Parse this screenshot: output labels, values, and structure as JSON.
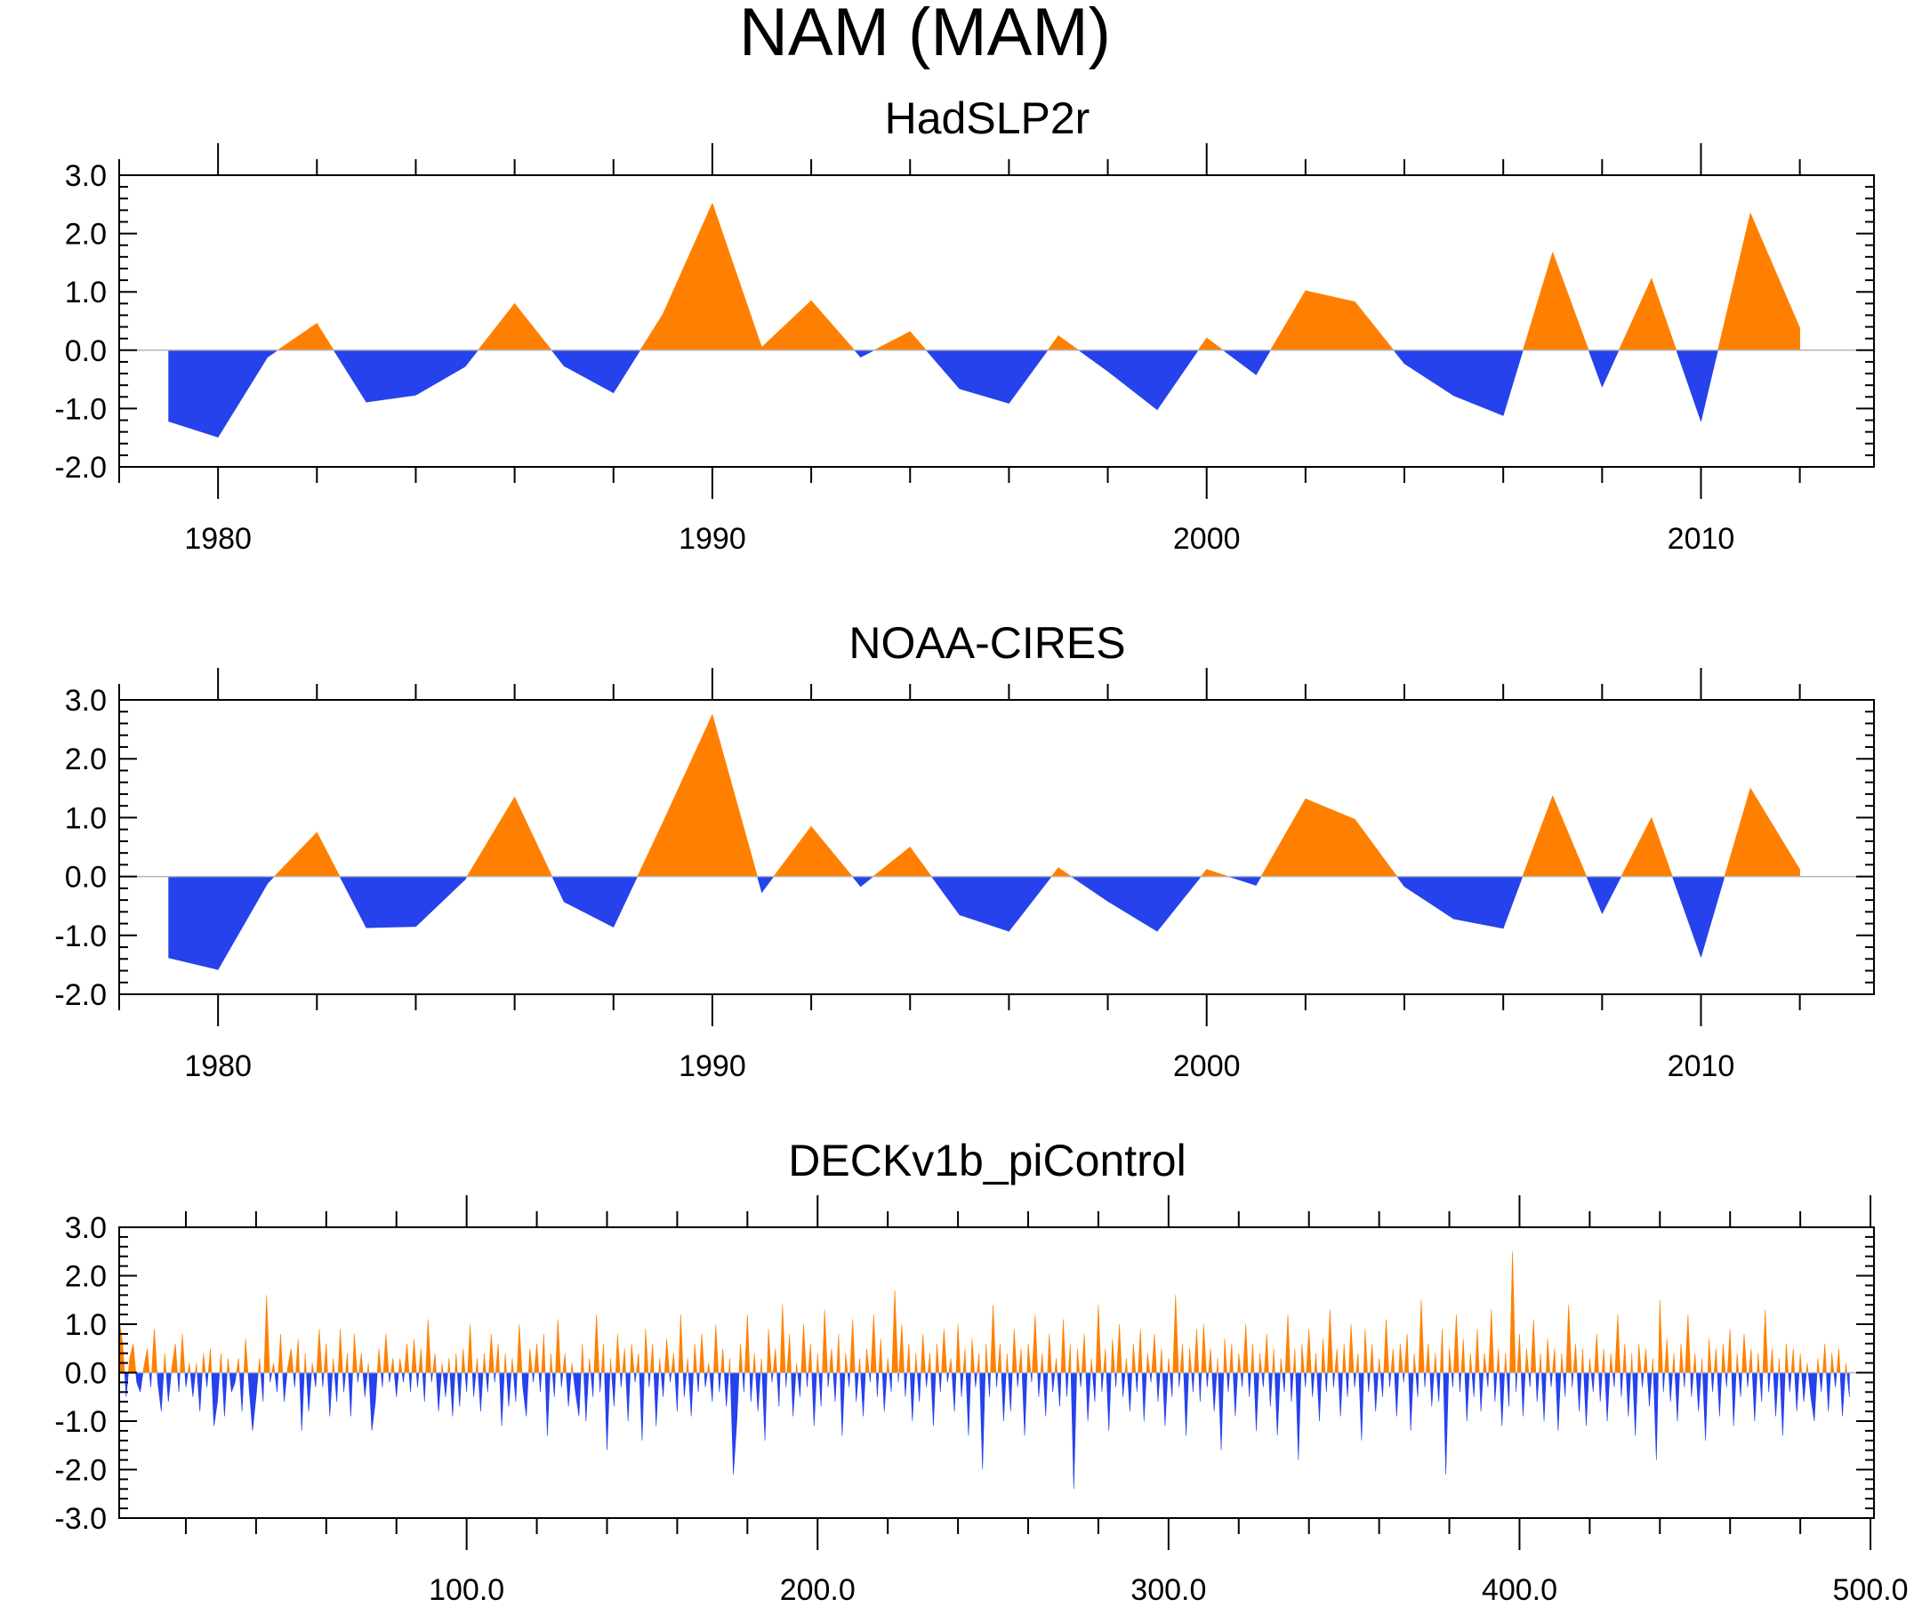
{
  "figure": {
    "title": "NAM (MAM)",
    "colors": {
      "positive": "#ff8000",
      "negative": "#2642ec",
      "zero_line": "#b4b4b4",
      "axis": "#000000"
    }
  },
  "chart_data": [
    {
      "type": "area",
      "title": "HadSLP2r",
      "xlabel": "",
      "ylabel": "",
      "xlim": [
        1978,
        2013.5
      ],
      "ylim": [
        -2.0,
        3.0
      ],
      "y_major_ticks": [
        -2.0,
        -1.0,
        0.0,
        1.0,
        2.0,
        3.0
      ],
      "y_tick_labels": [
        "-2.0",
        "-1.0",
        "0.0",
        "1.0",
        "2.0",
        "3.0"
      ],
      "x_major_ticks": [
        1980,
        1990,
        2000,
        2010
      ],
      "x_tick_labels": [
        "1980",
        "1990",
        "2000",
        "2010"
      ],
      "x_minor_step": 2,
      "x": [
        1979,
        1980,
        1981,
        1982,
        1983,
        1984,
        1985,
        1986,
        1987,
        1988,
        1989,
        1990,
        1991,
        1992,
        1993,
        1994,
        1995,
        1996,
        1997,
        1998,
        1999,
        2000,
        2001,
        2002,
        2003,
        2004,
        2005,
        2006,
        2007,
        2008,
        2009,
        2010,
        2011,
        2012
      ],
      "values": [
        -1.22,
        -1.49,
        -0.12,
        0.46,
        -0.89,
        -0.77,
        -0.28,
        0.8,
        -0.27,
        -0.73,
        0.62,
        2.52,
        0.05,
        0.85,
        -0.12,
        0.32,
        -0.66,
        -0.91,
        0.25,
        -0.36,
        -1.02,
        0.21,
        -0.42,
        1.02,
        0.83,
        -0.23,
        -0.78,
        -1.12,
        1.68,
        -0.63,
        1.23,
        -1.22,
        2.35,
        0.38
      ]
    },
    {
      "type": "area",
      "title": "NOAA-CIRES",
      "xlabel": "",
      "ylabel": "",
      "xlim": [
        1978,
        2013.5
      ],
      "ylim": [
        -2.0,
        3.0
      ],
      "y_major_ticks": [
        -2.0,
        -1.0,
        0.0,
        1.0,
        2.0,
        3.0
      ],
      "y_tick_labels": [
        "-2.0",
        "-1.0",
        "0.0",
        "1.0",
        "2.0",
        "3.0"
      ],
      "x_major_ticks": [
        1980,
        1990,
        2000,
        2010
      ],
      "x_tick_labels": [
        "1980",
        "1990",
        "2000",
        "2010"
      ],
      "x_minor_step": 2,
      "x": [
        1979,
        1980,
        1981,
        1982,
        1983,
        1984,
        1985,
        1986,
        1987,
        1988,
        1989,
        1990,
        1991,
        1992,
        1993,
        1994,
        1995,
        1996,
        1997,
        1998,
        1999,
        2000,
        2001,
        2002,
        2003,
        2004,
        2005,
        2006,
        2007,
        2008,
        2009,
        2010,
        2011,
        2012
      ],
      "values": [
        -1.38,
        -1.58,
        -0.12,
        0.75,
        -0.87,
        -0.85,
        -0.05,
        1.35,
        -0.43,
        -0.86,
        0.92,
        2.75,
        -0.27,
        0.85,
        -0.17,
        0.5,
        -0.65,
        -0.93,
        0.15,
        -0.42,
        -0.93,
        0.12,
        -0.15,
        1.32,
        0.97,
        -0.17,
        -0.72,
        -0.88,
        1.37,
        -0.63,
        1.0,
        -1.37,
        1.5,
        0.12
      ]
    },
    {
      "type": "area",
      "title": "DECKv1b_piControl",
      "xlabel": "",
      "ylabel": "",
      "xlim": [
        1,
        501
      ],
      "ylim": [
        -3.0,
        3.0
      ],
      "y_major_ticks": [
        -3.0,
        -2.0,
        -1.0,
        0.0,
        1.0,
        2.0,
        3.0
      ],
      "y_tick_labels": [
        "-3.0",
        "-2.0",
        "-1.0",
        "0.0",
        "1.0",
        "2.0",
        "3.0"
      ],
      "x_major_ticks": [
        100,
        200,
        300,
        400,
        500
      ],
      "x_tick_labels": [
        "100.0",
        "200.0",
        "300.0",
        "400.0",
        "500.0"
      ],
      "x_minor_step": 20,
      "x_start": 1,
      "x_step": 1,
      "values": [
        1.1,
        0.6,
        -0.5,
        0.3,
        0.6,
        -0.2,
        -0.4,
        0.1,
        0.5,
        -0.3,
        0.9,
        -0.2,
        -0.8,
        0.4,
        -0.6,
        0.1,
        0.6,
        -0.4,
        0.8,
        -0.3,
        0.2,
        -0.5,
        0.2,
        -0.8,
        0.4,
        -0.3,
        0.5,
        -1.1,
        -0.6,
        0.4,
        -0.9,
        0.3,
        -0.4,
        -0.2,
        0.3,
        -0.8,
        0.7,
        -0.3,
        -1.2,
        -0.5,
        0.3,
        -0.6,
        1.6,
        -0.2,
        0.2,
        -0.4,
        0.8,
        -0.6,
        0.1,
        0.5,
        -0.3,
        0.7,
        -1.2,
        0.4,
        -0.8,
        0.2,
        -0.3,
        0.9,
        -0.3,
        0.6,
        -0.9,
        0.3,
        -0.6,
        0.9,
        -0.4,
        0.4,
        -0.9,
        0.8,
        -0.2,
        0.4,
        -0.5,
        0.2,
        -1.2,
        -0.6,
        0.5,
        -0.3,
        0.8,
        -0.2,
        0.3,
        -0.5,
        0.3,
        -0.2,
        0.6,
        -0.4,
        0.7,
        -0.3,
        0.5,
        -0.6,
        1.1,
        -0.2,
        0.4,
        -0.8,
        0.2,
        -0.5,
        0.3,
        -0.9,
        0.4,
        -0.7,
        0.5,
        -0.4,
        1.0,
        -0.5,
        0.3,
        -0.8,
        0.4,
        -0.4,
        0.8,
        -0.2,
        0.6,
        -1.1,
        0.4,
        -0.7,
        0.3,
        -0.6,
        1.0,
        -0.3,
        -0.9,
        0.5,
        -0.2,
        0.6,
        -0.4,
        0.8,
        -1.3,
        0.4,
        -0.5,
        1.1,
        -0.3,
        0.4,
        -0.7,
        0.2,
        -0.4,
        -0.9,
        0.6,
        -1.0,
        0.3,
        -0.5,
        1.2,
        -0.4,
        0.6,
        -1.6,
        0.3,
        -0.7,
        0.8,
        -0.3,
        0.5,
        -1.0,
        0.6,
        -0.2,
        0.4,
        -1.4,
        0.9,
        -0.3,
        0.6,
        -1.1,
        0.3,
        -0.5,
        0.7,
        -0.2,
        0.4,
        -0.8,
        1.2,
        -0.5,
        0.3,
        -0.9,
        0.6,
        -0.4,
        0.8,
        -0.3,
        0.2,
        -0.6,
        1.0,
        -0.4,
        0.5,
        -0.7,
        0.3,
        -2.1,
        -1.0,
        0.6,
        -0.4,
        1.2,
        -0.6,
        0.4,
        -0.8,
        0.3,
        -1.4,
        0.9,
        -0.2,
        0.5,
        -0.7,
        1.4,
        -0.3,
        0.8,
        -0.9,
        0.2,
        -0.5,
        1.0,
        -0.3,
        0.6,
        -1.1,
        0.4,
        -0.7,
        1.3,
        -0.3,
        0.5,
        -0.6,
        0.8,
        -1.3,
        0.4,
        -0.3,
        1.1,
        -0.6,
        0.3,
        -0.9,
        0.5,
        -0.2,
        1.2,
        -0.5,
        0.7,
        -0.8,
        0.3,
        -0.4,
        1.7,
        -0.2,
        1.0,
        -0.5,
        0.6,
        -1.0,
        0.4,
        -0.6,
        0.8,
        -0.3,
        0.4,
        -1.1,
        0.6,
        -0.4,
        0.9,
        -0.2,
        0.3,
        -0.8,
        1.0,
        -0.5,
        0.5,
        -1.3,
        0.7,
        -0.3,
        0.4,
        -2.0,
        0.6,
        -0.5,
        1.4,
        -0.3,
        0.6,
        -1.0,
        0.4,
        -0.8,
        0.9,
        -0.3,
        0.5,
        -1.3,
        0.6,
        -0.2,
        1.2,
        -0.5,
        0.4,
        -0.9,
        0.8,
        -0.4,
        0.3,
        -0.7,
        1.1,
        -0.5,
        0.6,
        -2.4,
        0.5,
        -0.3,
        0.8,
        -1.0,
        0.3,
        -0.6,
        1.4,
        -0.4,
        0.5,
        -1.2,
        0.7,
        -0.3,
        1.0,
        -0.5,
        0.3,
        -0.8,
        0.6,
        -0.4,
        0.9,
        -1.0,
        0.4,
        -0.2,
        0.8,
        -0.6,
        0.5,
        -1.1,
        0.3,
        -0.5,
        1.6,
        -0.3,
        0.6,
        -1.3,
        0.5,
        -0.4,
        0.9,
        -0.6,
        1.0,
        -0.3,
        0.5,
        -0.8,
        0.3,
        -1.6,
        0.7,
        -0.4,
        0.6,
        -0.9,
        0.4,
        -0.3,
        1.0,
        -0.5,
        0.6,
        -1.2,
        0.4,
        -0.3,
        0.8,
        -0.7,
        0.5,
        -1.3,
        0.3,
        -0.4,
        1.2,
        -0.6,
        0.5,
        -1.8,
        0.6,
        -0.3,
        0.9,
        -0.5,
        0.4,
        -1.0,
        0.7,
        -0.4,
        1.3,
        -0.3,
        0.5,
        -0.9,
        0.6,
        -0.5,
        1.0,
        -0.3,
        0.4,
        -1.4,
        0.9,
        -0.4,
        0.6,
        -0.8,
        0.3,
        -0.5,
        1.1,
        -0.3,
        0.5,
        -0.9,
        0.6,
        -0.2,
        0.8,
        -1.2,
        0.4,
        -0.5,
        1.5,
        -0.3,
        0.6,
        -0.7,
        0.4,
        -0.6,
        0.9,
        -2.1,
        0.5,
        -0.3,
        1.2,
        -0.4,
        0.7,
        -1.0,
        0.4,
        -0.5,
        0.9,
        -0.8,
        0.4,
        -0.3,
        1.3,
        -0.6,
        0.5,
        -1.1,
        0.4,
        -0.7,
        2.5,
        -0.4,
        0.8,
        -0.9,
        0.5,
        -0.3,
        1.1,
        -0.6,
        0.4,
        -1.0,
        0.7,
        -0.3,
        0.5,
        -1.2,
        0.4,
        -0.5,
        1.4,
        -0.3,
        0.6,
        -0.8,
        0.5,
        -1.1,
        0.3,
        -0.4,
        0.8,
        -0.6,
        0.5,
        -1.0,
        0.4,
        -0.3,
        1.2,
        -0.5,
        0.6,
        -0.9,
        0.4,
        -1.3,
        0.6,
        -0.3,
        0.5,
        -0.7,
        0.3,
        -1.8,
        1.5,
        -0.4,
        0.7,
        -0.6,
        0.4,
        -1.0,
        0.6,
        -0.3,
        1.2,
        -0.5,
        0.4,
        -0.8,
        0.3,
        -1.4,
        0.7,
        -0.4,
        0.5,
        -0.9,
        0.6,
        -0.3,
        0.9,
        -1.1,
        0.4,
        -0.5,
        0.8,
        -0.3,
        0.5,
        -1.0,
        0.4,
        -0.6,
        1.3,
        -0.4,
        0.5,
        -0.9,
        0.3,
        -1.3,
        0.6,
        -0.4,
        0.5,
        -0.8,
        0.4,
        -0.6,
        0.2,
        -0.5,
        -1.0,
        0.3,
        -0.4,
        0.6,
        -0.8,
        0.4,
        -0.3,
        0.5,
        -0.9,
        0.2,
        -0.5
      ]
    }
  ]
}
